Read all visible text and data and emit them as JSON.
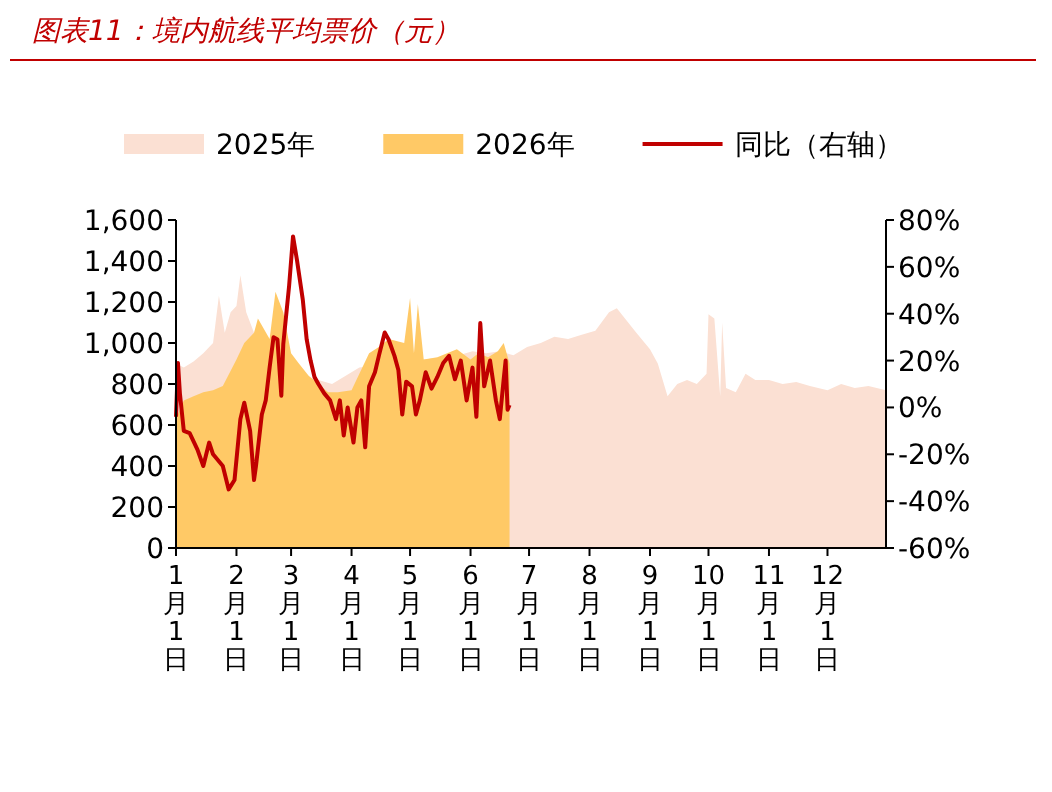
{
  "chart_data": {
    "type": "area",
    "title": "图表11：境内航线平均票价（元）",
    "xlim": [
      "--01-01",
      "--12-31"
    ],
    "xticks": [
      {
        "value": "--01-01",
        "label": "1月1日"
      },
      {
        "value": "--02-01",
        "label": "2月1日"
      },
      {
        "value": "--03-01",
        "label": "3月1日"
      },
      {
        "value": "--04-01",
        "label": "4月1日"
      },
      {
        "value": "--05-01",
        "label": "5月1日"
      },
      {
        "value": "--06-01",
        "label": "6月1日"
      },
      {
        "value": "--07-01",
        "label": "7月1日"
      },
      {
        "value": "--08-01",
        "label": "8月1日"
      },
      {
        "value": "--09-01",
        "label": "9月1日"
      },
      {
        "value": "--10-01",
        "label": "10月1日"
      },
      {
        "value": "--11-01",
        "label": "11月1日"
      },
      {
        "value": "--12-01",
        "label": "12月1日"
      }
    ],
    "ylim": [
      0,
      1600
    ],
    "yticks": [
      0,
      200,
      400,
      600,
      800,
      {
        "value": 1000,
        "label": "1,000"
      },
      {
        "value": 1200,
        "label": "1,200"
      },
      {
        "value": 1400,
        "label": "1,400"
      },
      {
        "value": 1600,
        "label": "1,600"
      }
    ],
    "y2lim": [
      -60,
      80
    ],
    "y2ticks": [
      {
        "value": -60,
        "label": "-60%"
      },
      {
        "value": -40,
        "label": "-40%"
      },
      {
        "value": -20,
        "label": "-20%"
      },
      {
        "value": 0,
        "label": "0%"
      },
      {
        "value": 20,
        "label": "20%"
      },
      {
        "value": 40,
        "label": "40%"
      },
      {
        "value": 60,
        "label": "60%"
      },
      {
        "value": 80,
        "label": "80%"
      }
    ],
    "legend": "top",
    "grid": false,
    "series": [
      {
        "name": "2025年",
        "color": "#fbe0d3",
        "x": [
          "--01-01",
          "--01-05",
          "--01-10",
          "--01-15",
          "--01-20",
          "--01-23",
          "--01-26",
          "--01-29",
          "--02-01",
          "--02-03",
          "--02-06",
          "--02-10",
          "--03-08",
          "--03-15",
          "--03-22",
          "--03-29",
          "--04-05",
          "--05-26",
          "--06-02",
          "--06-09",
          "--06-16",
          "--06-23",
          "--06-30",
          "--07-07",
          "--07-14",
          "--07-21",
          "--07-28",
          "--08-04",
          "--08-11",
          "--08-15",
          "--08-20",
          "--08-25",
          "--09-01",
          "--09-05",
          "--09-10",
          "--09-15",
          "--09-20",
          "--09-25",
          "--09-30",
          "--10-01",
          "--10-04",
          "--10-07",
          "--10-08",
          "--10-10",
          "--10-15",
          "--10-20",
          "--10-25",
          "--11-01",
          "--11-08",
          "--11-15",
          "--11-22",
          "--12-01",
          "--12-08",
          "--12-15",
          "--12-22",
          "--12-31"
        ],
        "values": [
          900,
          880,
          910,
          950,
          1000,
          1230,
          1050,
          1150,
          1180,
          1330,
          1150,
          1050,
          840,
          820,
          800,
          840,
          880,
          940,
          960,
          950,
          960,
          940,
          980,
          1000,
          1030,
          1020,
          1040,
          1060,
          1150,
          1170,
          1110,
          1050,
          970,
          900,
          740,
          800,
          820,
          800,
          850,
          1140,
          1120,
          740,
          1100,
          780,
          760,
          850,
          820,
          820,
          800,
          810,
          790,
          770,
          800,
          780,
          790,
          770
        ]
      },
      {
        "name": "2026年",
        "color": "#ffc966",
        "x": [
          "--01-01",
          "--01-05",
          "--01-10",
          "--01-15",
          "--01-20",
          "--01-25",
          "--02-01",
          "--02-05",
          "--02-10",
          "--02-12",
          "--02-18",
          "--02-21",
          "--02-25",
          "--03-01",
          "--03-05",
          "--03-10",
          "--03-15",
          "--03-20",
          "--03-25",
          "--04-01",
          "--04-05",
          "--04-10",
          "--04-15",
          "--04-20",
          "--04-28",
          "--05-01",
          "--05-03",
          "--05-05",
          "--05-08",
          "--05-15",
          "--05-20",
          "--05-25",
          "--06-01",
          "--06-05",
          "--06-10",
          "--06-15",
          "--06-18",
          "--06-21"
        ],
        "values": [
          630,
          720,
          740,
          760,
          770,
          790,
          920,
          1000,
          1050,
          1120,
          1020,
          1250,
          1150,
          950,
          900,
          840,
          800,
          760,
          760,
          770,
          850,
          950,
          980,
          1020,
          1000,
          1220,
          950,
          1190,
          920,
          930,
          950,
          970,
          920,
          950,
          930,
          960,
          1000,
          900
        ]
      },
      {
        "name": "同比（右轴）",
        "type": "line",
        "axis": "y2",
        "color": "#c00000",
        "x": [
          "--01-01",
          "--01-02",
          "--01-03",
          "--01-05",
          "--01-08",
          "--01-12",
          "--01-15",
          "--01-18",
          "--01-20",
          "--01-25",
          "--01-28",
          "--01-31",
          "--02-03",
          "--02-05",
          "--02-08",
          "--02-10",
          "--02-11",
          "--02-14",
          "--02-16",
          "--02-18",
          "--02-20",
          "--02-22",
          "--02-24",
          "--02-25",
          "--02-28",
          "--03-02",
          "--03-04",
          "--03-07",
          "--03-09",
          "--03-11",
          "--03-13",
          "--03-15",
          "--03-18",
          "--03-21",
          "--03-24",
          "--03-26",
          "--03-28",
          "--03-30",
          "--04-02",
          "--04-04",
          "--04-06",
          "--04-08",
          "--04-10",
          "--04-13",
          "--04-15",
          "--04-18",
          "--04-20",
          "--04-23",
          "--04-25",
          "--04-27",
          "--04-29",
          "--05-02",
          "--05-04",
          "--05-06",
          "--05-09",
          "--05-12",
          "--05-15",
          "--05-18",
          "--05-21",
          "--05-24",
          "--05-27",
          "--05-30",
          "--06-02",
          "--06-04",
          "--06-06",
          "--06-08",
          "--06-11",
          "--06-14",
          "--06-16",
          "--06-18",
          "--06-19",
          "--06-20",
          "--06-21"
        ],
        "values": [
          -4,
          19,
          6,
          -10,
          -11,
          -18,
          -25,
          -15,
          -20,
          -25,
          -35,
          -31,
          -5,
          2,
          -10,
          -31,
          -25,
          -3,
          3,
          17,
          30,
          29,
          5,
          27,
          52,
          73,
          63,
          46,
          29,
          20,
          13,
          10,
          6,
          3,
          -5,
          3,
          -12,
          0,
          -15,
          0,
          3,
          -17,
          9,
          15,
          22,
          32,
          29,
          22,
          16,
          -3,
          11,
          9,
          -3,
          3,
          15,
          8,
          13,
          19,
          22,
          12,
          20,
          3,
          17,
          -4,
          36,
          9,
          20,
          3,
          -5,
          12,
          20,
          -1,
          1
        ]
      }
    ]
  }
}
